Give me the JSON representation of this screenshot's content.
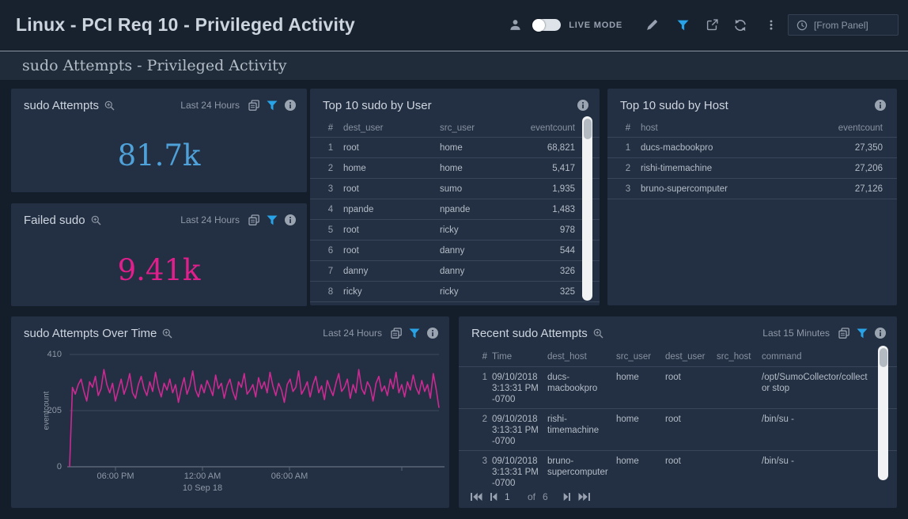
{
  "topbar": {
    "title": "Linux - PCI Req 10 - Privileged Activity",
    "live_mode_label": "LIVE MODE",
    "from_panel_label": "[From Panel]"
  },
  "subtitle": "sudo Attempts - Privileged Activity",
  "colors": {
    "accent_blue": "#29a3e8",
    "value_blue": "#4fa1d9",
    "value_pink": "#e01f8d",
    "chart_line": "#cb2a92"
  },
  "panel_sudo_attempts": {
    "title": "sudo Attempts",
    "time_range": "Last 24 Hours",
    "value": "81.7k"
  },
  "panel_failed_sudo": {
    "title": "Failed sudo",
    "time_range": "Last 24 Hours",
    "value": "9.41k"
  },
  "panel_top_user": {
    "title": "Top 10 sudo by User",
    "columns": [
      "#",
      "dest_user",
      "src_user",
      "eventcount"
    ],
    "rows": [
      [
        "1",
        "root",
        "home",
        "68,821"
      ],
      [
        "2",
        "home",
        "home",
        "5,417"
      ],
      [
        "3",
        "root",
        "sumo",
        "1,935"
      ],
      [
        "4",
        "npande",
        "npande",
        "1,483"
      ],
      [
        "5",
        "root",
        "ricky",
        "978"
      ],
      [
        "6",
        "root",
        "danny",
        "544"
      ],
      [
        "7",
        "danny",
        "danny",
        "326"
      ],
      [
        "8",
        "ricky",
        "ricky",
        "325"
      ]
    ]
  },
  "panel_top_host": {
    "title": "Top 10 sudo by Host",
    "columns": [
      "#",
      "host",
      "eventcount"
    ],
    "rows": [
      [
        "1",
        "ducs-macbookpro",
        "27,350"
      ],
      [
        "2",
        "rishi-timemachine",
        "27,206"
      ],
      [
        "3",
        "bruno-supercomputer",
        "27,126"
      ]
    ]
  },
  "panel_over_time": {
    "title": "sudo Attempts Over Time",
    "time_range": "Last 24 Hours"
  },
  "panel_recent": {
    "title": "Recent sudo Attempts",
    "time_range": "Last 15 Minutes",
    "columns": [
      "#",
      "Time",
      "dest_host",
      "src_user",
      "dest_user",
      "src_host",
      "command"
    ],
    "rows": [
      [
        "1",
        "09/10/2018 3:13:31 PM -0700",
        "ducs-macbookpro",
        "home",
        "root",
        "",
        "/opt/SumoCollector/collector stop"
      ],
      [
        "2",
        "09/10/2018 3:13:31 PM -0700",
        "rishi-timemachine",
        "home",
        "root",
        "",
        "/bin/su -"
      ],
      [
        "3",
        "09/10/2018 3:13:31 PM -0700",
        "bruno-supercomputer",
        "home",
        "root",
        "",
        "/bin/su -"
      ]
    ],
    "pagination": {
      "current": "1",
      "of_label": "of",
      "total": "6"
    }
  },
  "chart_data": {
    "type": "line",
    "title": "sudo Attempts Over Time",
    "ylabel": "eventcount",
    "ylim": [
      0,
      410
    ],
    "yticks": [
      0,
      205,
      410
    ],
    "xticklabels": [
      "06:00 PM",
      "12:00 AM",
      "06:00 AM"
    ],
    "x_date_label": "10 Sep 18",
    "grid": true,
    "legend": false,
    "series": [
      {
        "name": "eventcount",
        "color": "#cb2a92",
        "values": [
          0,
          290,
          265,
          300,
          320,
          275,
          240,
          310,
          290,
          330,
          260,
          285,
          355,
          300,
          270,
          305,
          240,
          280,
          320,
          265,
          295,
          340,
          270,
          250,
          300,
          330,
          285,
          260,
          310,
          275,
          345,
          290,
          255,
          305,
          280,
          320,
          270,
          300,
          235,
          285,
          325,
          265,
          295,
          350,
          280,
          255,
          300,
          270,
          315,
          290,
          260,
          335,
          285,
          305,
          250,
          295,
          320,
          275,
          245,
          310,
          290,
          340,
          265,
          280,
          300,
          255,
          325,
          285,
          310,
          270,
          345,
          295,
          260,
          305,
          280,
          235,
          300,
          320,
          275,
          290,
          350,
          265,
          285,
          310,
          255,
          300,
          330,
          270,
          295,
          245,
          315,
          285,
          260,
          305,
          340,
          275,
          290,
          320,
          250,
          300,
          270,
          355,
          285,
          265,
          310,
          290,
          240,
          305,
          330,
          275,
          295,
          260,
          320,
          285,
          345,
          270,
          300,
          255,
          310,
          280,
          335,
          290,
          265,
          315,
          275,
          300,
          250,
          340,
          285,
          215
        ]
      }
    ]
  }
}
